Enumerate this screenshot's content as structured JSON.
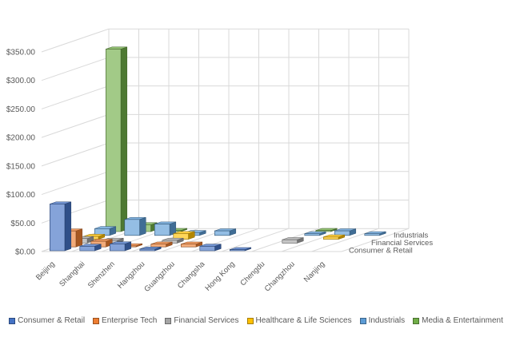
{
  "chart_data": {
    "type": "bar",
    "subtype": "3d-column",
    "title": "",
    "xlabel": "",
    "ylabel": "",
    "ylim": [
      0,
      350
    ],
    "y_ticks": [
      "$0.00",
      "$50.00",
      "$100.00",
      "$150.00",
      "$200.00",
      "$250.00",
      "$300.00",
      "$350.00"
    ],
    "grid": true,
    "legend_position": "bottom",
    "categories": [
      "Beijing",
      "Shanghai",
      "Shenzhen",
      "Hangzhou",
      "Guangzhou",
      "Changsha",
      "Hong Kong",
      "Chengdu",
      "Changzhou",
      "Nanjing"
    ],
    "depth_labels": [
      "Consumer & Retail",
      "Financial Services",
      "Industrials"
    ],
    "series": [
      {
        "name": "Consumer & Retail",
        "color": "#4472C4",
        "values": [
          82,
          8,
          12,
          3,
          0,
          8,
          2,
          0,
          0,
          0
        ]
      },
      {
        "name": "Enterprise Tech",
        "color": "#ED7D31",
        "values": [
          28,
          10,
          2,
          5,
          5,
          0,
          0,
          0,
          0,
          0
        ]
      },
      {
        "name": "Financial Services",
        "color": "#A5A5A5",
        "values": [
          8,
          5,
          0,
          5,
          0,
          0,
          0,
          6,
          0,
          0
        ]
      },
      {
        "name": "Healthcare & Life Sciences",
        "color": "#FFC000",
        "values": [
          5,
          0,
          0,
          10,
          0,
          0,
          0,
          0,
          4,
          0
        ]
      },
      {
        "name": "Industrials",
        "color": "#5B9BD5",
        "values": [
          12,
          28,
          20,
          5,
          8,
          0,
          0,
          3,
          8,
          3
        ]
      },
      {
        "name": "Media & Entertainment",
        "color": "#70AD47",
        "values": [
          320,
          12,
          2,
          0,
          0,
          0,
          0,
          2,
          0,
          0
        ]
      }
    ]
  }
}
